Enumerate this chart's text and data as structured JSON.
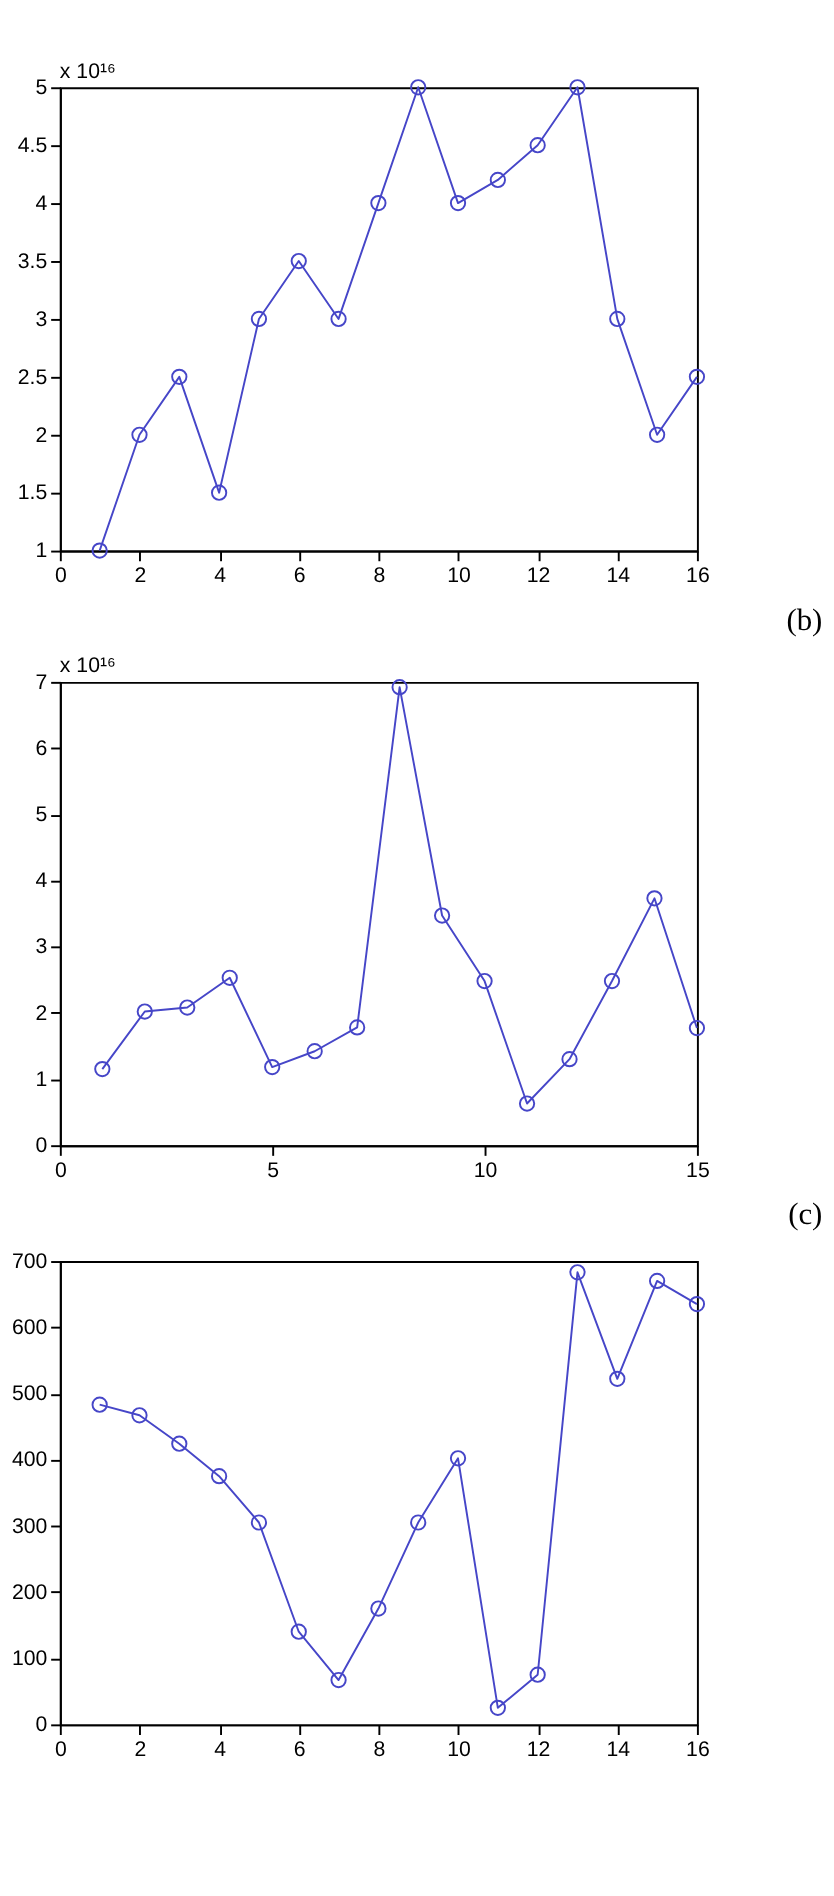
{
  "chart_data": [
    {
      "type": "line",
      "x": [
        1,
        2,
        3,
        4,
        5,
        6,
        7,
        8,
        9,
        10,
        11,
        12,
        13,
        14,
        15,
        16
      ],
      "series": [
        {
          "color": "#4646c8",
          "values": [
            1,
            2,
            2.5,
            1.5,
            3,
            3.5,
            3,
            4,
            5,
            4,
            4.2,
            4.5,
            5,
            3,
            2,
            2.5
          ]
        }
      ],
      "xlim": [
        0,
        16
      ],
      "ylim": [
        1,
        5
      ],
      "xticks": [
        0,
        2,
        4,
        6,
        8,
        10,
        12,
        14,
        16
      ],
      "yticks": [
        1,
        1.5,
        2,
        2.5,
        3,
        3.5,
        4,
        4.5,
        5
      ],
      "grid": false,
      "marker": "circle",
      "line_style": "solid",
      "annotations": [
        "x 10¹⁶",
        "(b)"
      ]
    },
    {
      "type": "line",
      "x": [
        1,
        2,
        3,
        4,
        5,
        6,
        7,
        8,
        9,
        10,
        11,
        12,
        13,
        14,
        15
      ],
      "series": [
        {
          "color": "#4646c8",
          "values": [
            1.15,
            2.02,
            2.08,
            2.53,
            1.18,
            1.42,
            1.78,
            6.92,
            3.47,
            2.48,
            0.63,
            1.3,
            2.48,
            3.73,
            1.77
          ]
        }
      ],
      "xlim": [
        0,
        15
      ],
      "ylim": [
        0,
        7
      ],
      "xticks": [
        0,
        5,
        10,
        15
      ],
      "yticks": [
        0,
        1,
        2,
        3,
        4,
        5,
        6,
        7
      ],
      "grid": false,
      "marker": "circle",
      "line_style": "solid",
      "annotations": [
        "x 10¹⁶",
        "(c)"
      ]
    },
    {
      "type": "line",
      "x": [
        1,
        2,
        3,
        4,
        5,
        6,
        7,
        8,
        9,
        10,
        11,
        12,
        13,
        14,
        15,
        16
      ],
      "series": [
        {
          "color": "#4646c8",
          "values": [
            483,
            467,
            424,
            375,
            305,
            140,
            67,
            175,
            305,
            402,
            25,
            75,
            683,
            522,
            670,
            635
          ]
        }
      ],
      "xlim": [
        0,
        16
      ],
      "ylim": [
        0,
        700
      ],
      "xticks": [
        0,
        2,
        4,
        6,
        8,
        10,
        12,
        14,
        16
      ],
      "yticks": [
        0,
        100,
        200,
        300,
        400,
        500,
        600,
        700
      ],
      "grid": false,
      "marker": "circle",
      "line_style": "solid"
    }
  ]
}
